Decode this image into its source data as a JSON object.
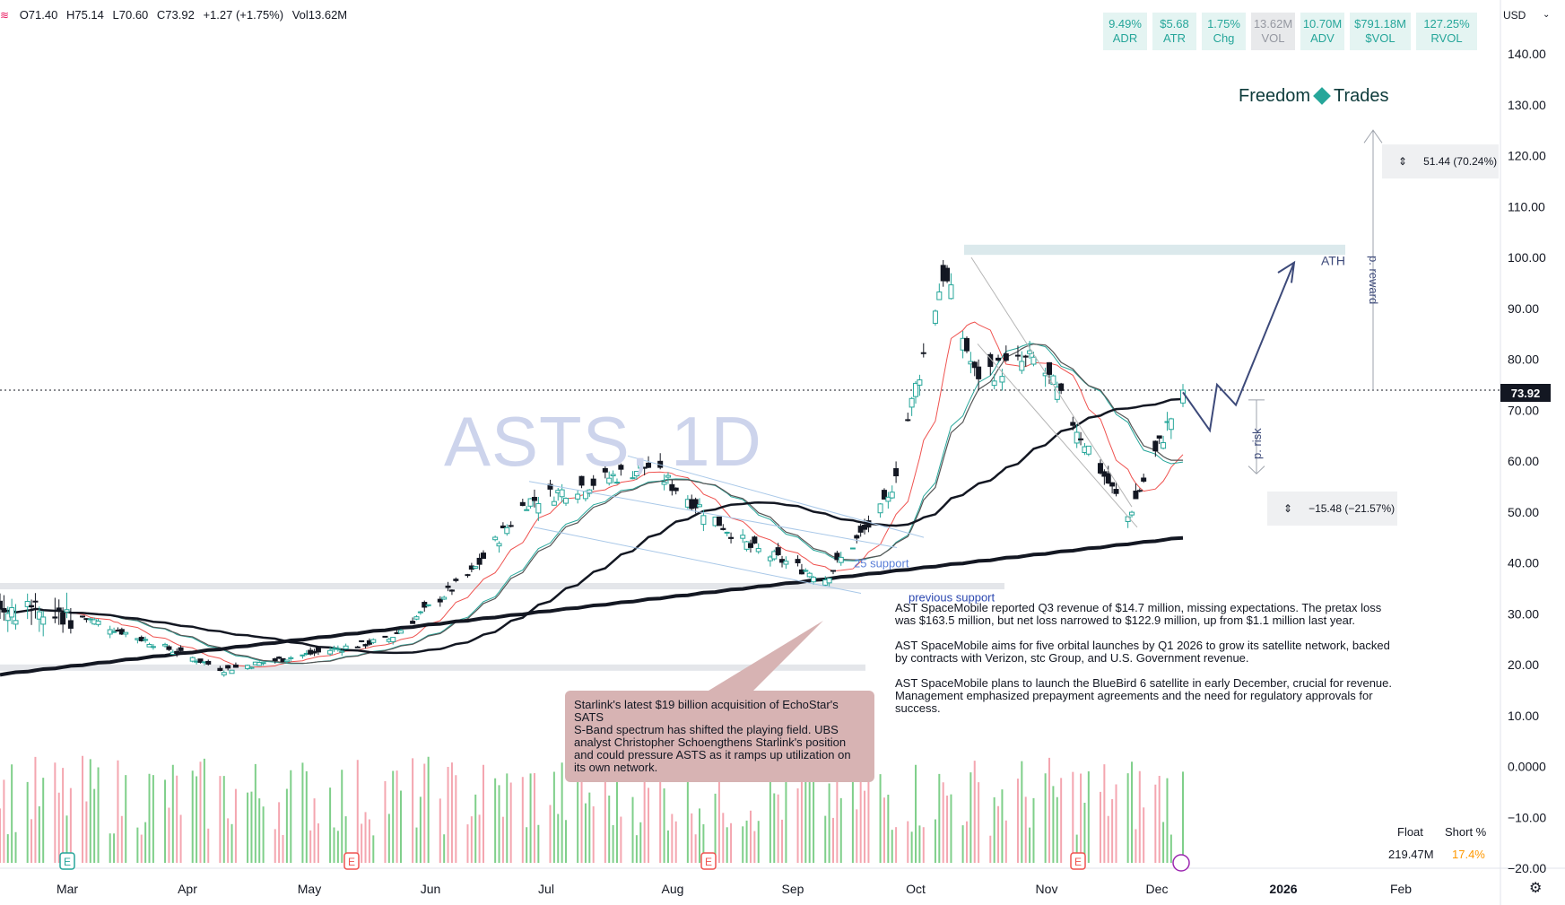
{
  "header": {
    "ohlc": [
      "O71.40",
      "H75.14",
      "L70.60",
      "C73.92",
      "+1.27 (+1.75%)",
      "Vol13.62M"
    ]
  },
  "stats": [
    {
      "value": "9.49%",
      "label": "ADR"
    },
    {
      "value": "$5.68",
      "label": "ATR"
    },
    {
      "value": "1.75%",
      "label": "Chg"
    },
    {
      "value": "13.62M",
      "label": "VOL"
    },
    {
      "value": "10.70M",
      "label": "ADV"
    },
    {
      "value": "$791.18M",
      "label": "$VOL"
    },
    {
      "value": "127.25%",
      "label": "RVOL"
    }
  ],
  "currency": "USD",
  "brand": {
    "left": "Freedom",
    "right": "Trades"
  },
  "watermark": "ASTS, 1D",
  "last_price_tag": "73.92",
  "measure_reward": "51.44 (70.24%)",
  "measure_risk": "−15.48 (−21.57%)",
  "annotations": {
    "ath": "ATH",
    "p_reward": "p. reward",
    "p_risk": "p. risk",
    "support": "25 support",
    "previous_support": "previous support"
  },
  "news": [
    "AST SpaceMobile reported Q3 revenue of $14.7 million, missing expectations. The pretax loss was $163.5 million, but net loss narrowed to $122.9 million, up from $1.1 million last year.",
    "AST SpaceMobile aims for five orbital launches by Q1 2026 to grow its satellite network, backed by contracts with Verizon, stc Group, and U.S. Government revenue.",
    "AST SpaceMobile plans to launch the BlueBird 6 satellite in early December, crucial for revenue. Management emphasized prepayment agreements and the need for regulatory approvals for success."
  ],
  "callout": "Starlink's latest $19 billion acquisition of EchoStar's SATS\n S-Band spectrum has shifted the playing field. UBS analyst Christopher Schoengthens Starlink's position and could pressure ASTS as it ramps up utilization on its own network.",
  "float": {
    "float_label": "Float",
    "float_value": "219.47M",
    "short_label": "Short %",
    "short_value": "17.4%"
  },
  "colors": {
    "up": "#26a69a",
    "down": "#ef5350",
    "volume_up": "#7fcf8a",
    "volume_down": "#f4a6b0",
    "accent": "#26a69a",
    "arrow": "#3d4a7a"
  },
  "chart_data": {
    "type": "candlestick",
    "title": "ASTS, 1D",
    "ylim": [
      -20,
      145
    ],
    "y_ticks": [
      "140.00",
      "130.00",
      "120.00",
      "110.00",
      "100.00",
      "90.00",
      "80.00",
      "70.00",
      "60.00",
      "50.00",
      "40.00",
      "30.00",
      "20.00",
      "10.00",
      "0.0000",
      "−10.00",
      "−20.00"
    ],
    "x_ticks": [
      "Mar",
      "Apr",
      "May",
      "Jun",
      "Jul",
      "Aug",
      "Sep",
      "Oct",
      "Nov",
      "Dec",
      "2026",
      "Feb"
    ],
    "last_close": 73.92,
    "ath_zone": [
      100.5,
      102.5
    ],
    "support_levels": [
      35.5,
      19.5
    ],
    "key_points": [
      {
        "date": "2025-03-01",
        "close": 30
      },
      {
        "date": "2025-04-08",
        "close": 19
      },
      {
        "date": "2025-05-20",
        "close": 25
      },
      {
        "date": "2025-06-10",
        "close": 38
      },
      {
        "date": "2025-06-24",
        "close": 52
      },
      {
        "date": "2025-07-25",
        "close": 59
      },
      {
        "date": "2025-08-20",
        "close": 43
      },
      {
        "date": "2025-09-08",
        "close": 37
      },
      {
        "date": "2025-09-24",
        "close": 52
      },
      {
        "date": "2025-10-08",
        "close": 97
      },
      {
        "date": "2025-10-16",
        "close": 77
      },
      {
        "date": "2025-11-01",
        "close": 80
      },
      {
        "date": "2025-11-24",
        "close": 49
      },
      {
        "date": "2025-12-08",
        "close": 73.92
      }
    ]
  },
  "markers": {
    "earnings_icon": "E",
    "dividend_icon": "E"
  }
}
